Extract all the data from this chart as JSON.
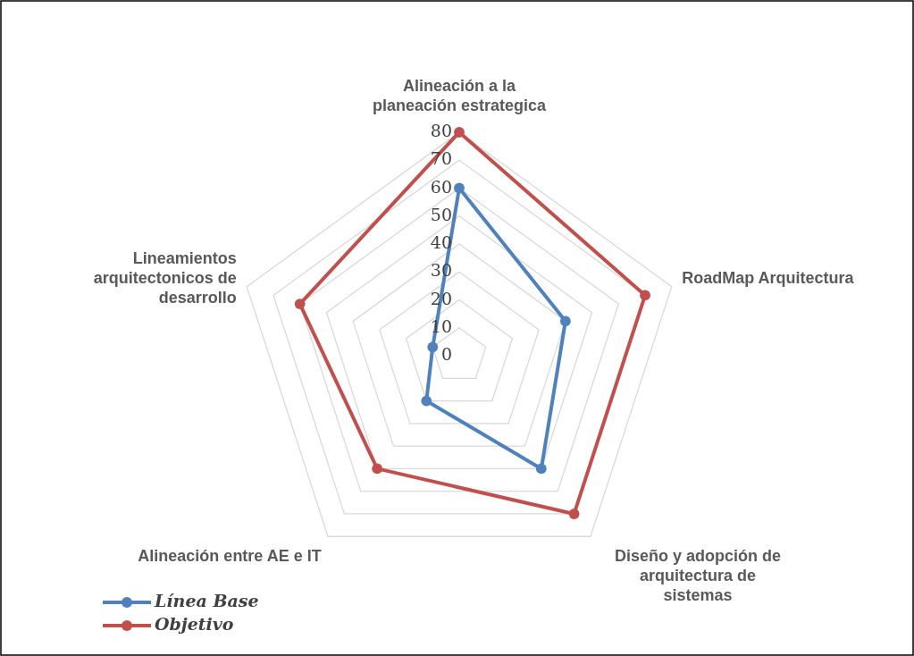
{
  "chart_data": {
    "type": "radar",
    "categories": [
      "Alineación a la planeación estrategica",
      "RoadMap Arquitectura",
      "Diseño y adopción de arquitectura de sistemas",
      "Alineación entre AE e IT",
      "Lineamientos arquitectonicos de desarrollo"
    ],
    "series": [
      {
        "name": "Línea Base",
        "color": "#4f81bd",
        "values": [
          60,
          40,
          50,
          20,
          10
        ]
      },
      {
        "name": "Objetivo",
        "color": "#c0504d",
        "values": [
          80,
          70,
          70,
          50,
          60
        ]
      }
    ],
    "ylim": [
      0,
      80
    ],
    "yticks": [
      0,
      10,
      20,
      30,
      40,
      50,
      60,
      70,
      80
    ],
    "grid": true,
    "legend": "bottom left",
    "marker": "circle"
  }
}
